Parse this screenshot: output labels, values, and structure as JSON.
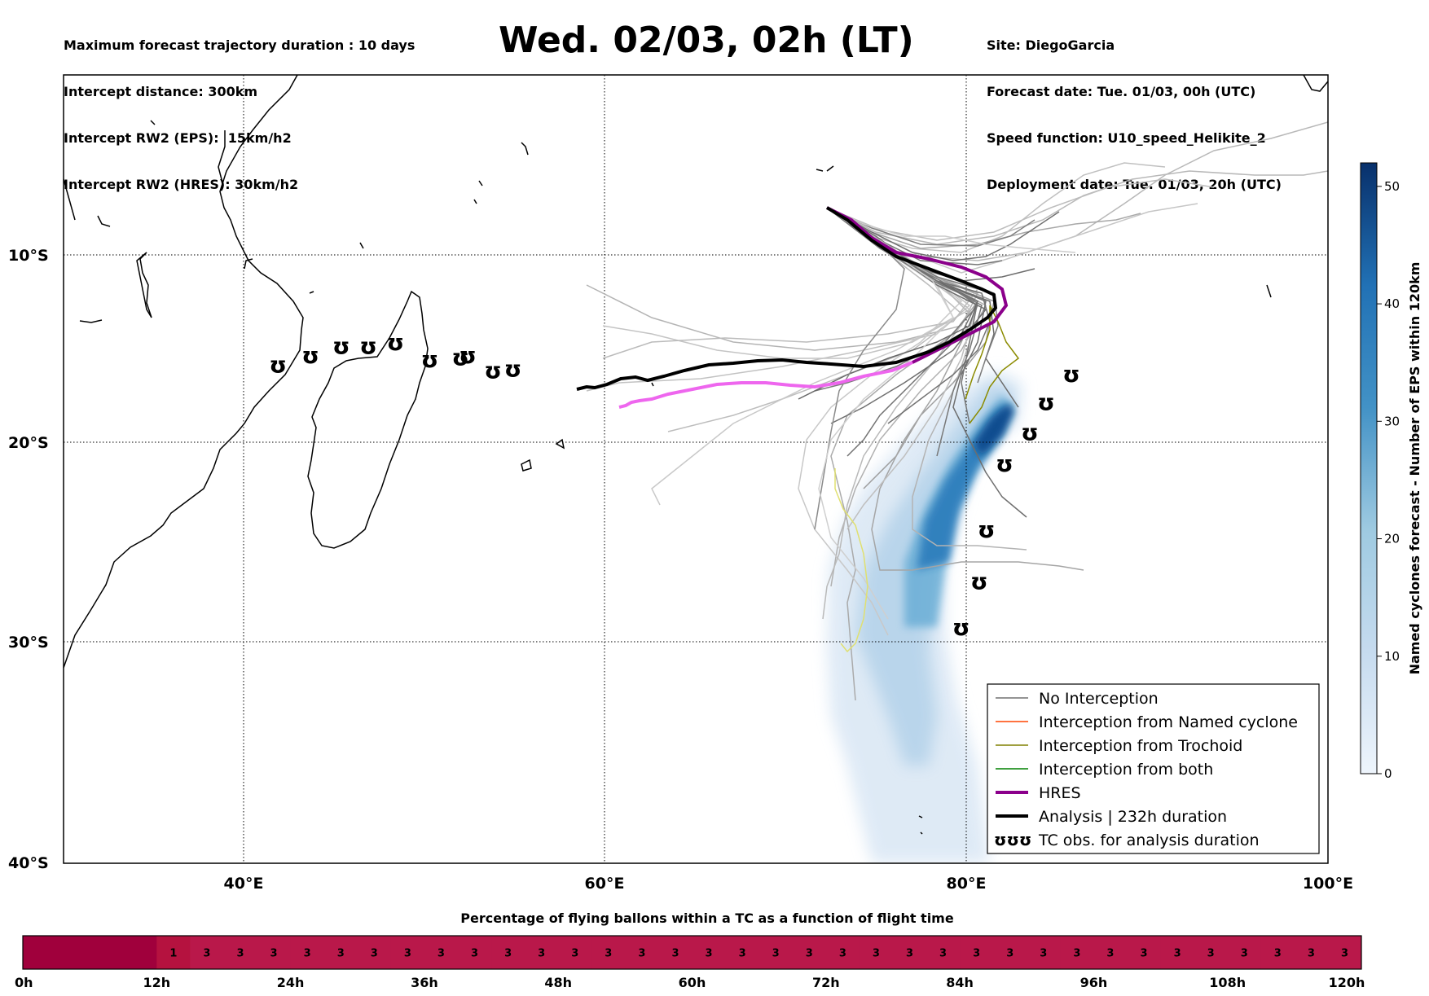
{
  "header": {
    "left_lines": [
      "Maximum forecast trajectory duration : 10 days",
      "Intercept distance: 300km",
      "Intercept RW2 (EPS):  15km/h2",
      "Intercept RW2 (HRES): 30km/h2"
    ],
    "title": "Wed. 02/03, 02h (LT)",
    "right_lines": [
      "Site: DiegoGarcia",
      "Forecast date: Tue. 01/03, 00h (UTC)",
      "Speed function: U10_speed_Helikite_2",
      "Deployment date: Tue. 01/03, 20h (UTC)"
    ]
  },
  "map": {
    "lat_labels": [
      "10°S",
      "20°S",
      "30°S",
      "40°S"
    ],
    "lon_labels": [
      "40°E",
      "60°E",
      "80°E",
      "100°E"
    ],
    "colors": {
      "no_interception": "#707070",
      "named_cyclone": "#ff4500",
      "trochoid": "#808000",
      "both": "#008000",
      "hres": "#8b008b",
      "analysis": "#000000",
      "yellow_track": "#e8e860"
    },
    "tc_obs_symbol": "ʊ",
    "tc_obs_positions": [
      {
        "lon": 41.9,
        "lat": -15.9
      },
      {
        "lon": 43.7,
        "lat": -15.4
      },
      {
        "lon": 45.4,
        "lat": -14.9
      },
      {
        "lon": 46.9,
        "lat": -14.9
      },
      {
        "lon": 48.4,
        "lat": -14.7
      },
      {
        "lon": 50.3,
        "lat": -15.6
      },
      {
        "lon": 52.0,
        "lat": -15.5
      },
      {
        "lon": 52.4,
        "lat": -15.4
      },
      {
        "lon": 53.8,
        "lat": -16.2
      },
      {
        "lon": 54.9,
        "lat": -16.1
      },
      {
        "lon": 85.8,
        "lat": -16.4
      },
      {
        "lon": 84.4,
        "lat": -17.9
      },
      {
        "lon": 83.5,
        "lat": -19.5
      },
      {
        "lon": 82.1,
        "lat": -21.1
      },
      {
        "lon": 81.1,
        "lat": -24.4
      },
      {
        "lon": 80.7,
        "lat": -27.0
      },
      {
        "lon": 79.7,
        "lat": -29.3
      }
    ],
    "legend": [
      {
        "label": "No Interception",
        "style": "no_interception"
      },
      {
        "label": "Interception from Named cyclone",
        "style": "named_cyclone"
      },
      {
        "label": "Interception from Trochoid",
        "style": "trochoid"
      },
      {
        "label": "Interception from both",
        "style": "both"
      },
      {
        "label": "HRES",
        "style": "hres"
      },
      {
        "label": "Analysis | 232h duration",
        "style": "analysis"
      },
      {
        "label": "TC obs. for analysis duration",
        "style": "tc_obs"
      }
    ]
  },
  "colorbar": {
    "label": "Named cyclones forecast - Number of EPS within 120km",
    "ticks": [
      "0",
      "10",
      "20",
      "30",
      "40",
      "50"
    ],
    "min": 0,
    "max": 52,
    "color_low": "#e8f1fa",
    "color_high": "#08306b"
  },
  "flight_bar": {
    "title": "Percentage of flying ballons within a TC as a function of flight time",
    "time_labels": [
      "0h",
      "12h",
      "24h",
      "36h",
      "48h",
      "60h",
      "72h",
      "84h",
      "96h",
      "108h",
      "120h"
    ],
    "values": [
      "",
      "",
      "",
      "",
      "1",
      "3",
      "3",
      "3",
      "3",
      "3",
      "3",
      "3",
      "3",
      "3",
      "3",
      "3",
      "3",
      "3",
      "3",
      "3",
      "3",
      "3",
      "3",
      "3",
      "3",
      "3",
      "3",
      "3",
      "3",
      "3",
      "3",
      "3",
      "3",
      "3",
      "3",
      "3",
      "3",
      "3",
      "3",
      "3"
    ],
    "color_zero": "#a0003c",
    "color_low": "#b5123f",
    "color_main": "#b9184a"
  }
}
